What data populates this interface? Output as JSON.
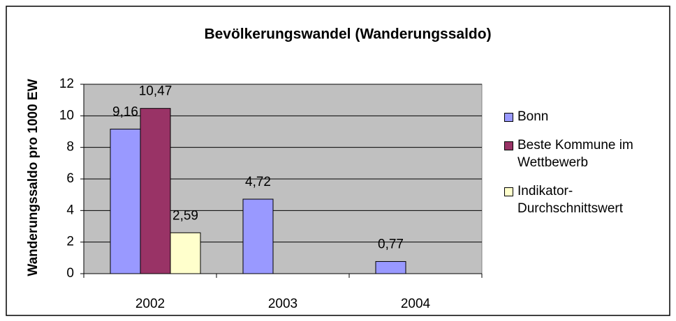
{
  "chart_data": {
    "type": "bar",
    "title": "Bevölkerungswandel (Wanderungssaldo)",
    "y_label": "Wanderungssaldo pro 1000 EW",
    "categories": [
      "2002",
      "2003",
      "2004"
    ],
    "series": [
      {
        "name": "Bonn",
        "color": "#9999ff",
        "values": [
          9.16,
          4.72,
          0.77
        ],
        "value_labels": [
          "9,16",
          "4,72",
          "0,77"
        ]
      },
      {
        "name": "Beste Kommune im Wettbewerb",
        "color": "#993366",
        "values": [
          10.47,
          null,
          null
        ],
        "value_labels": [
          "10,47",
          null,
          null
        ]
      },
      {
        "name": "Indikator-Durchschnittswert",
        "color": "#ffffcc",
        "values": [
          2.59,
          null,
          null
        ],
        "value_labels": [
          "2,59",
          null,
          null
        ]
      }
    ],
    "ylim": [
      0,
      12
    ],
    "yticks": [
      0,
      2,
      4,
      6,
      8,
      10,
      12
    ],
    "grid": true,
    "legend": "right"
  }
}
